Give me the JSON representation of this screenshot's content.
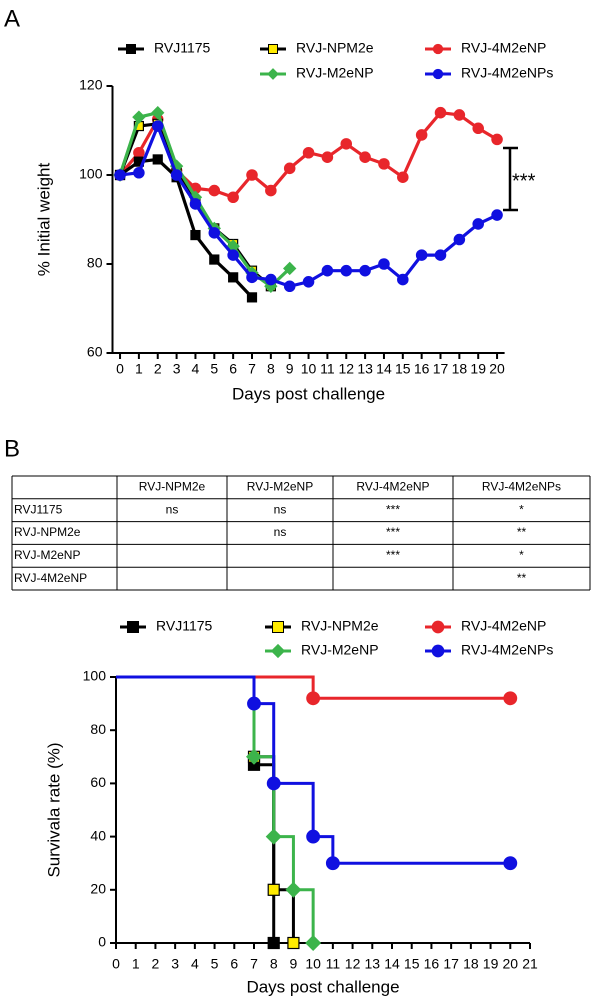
{
  "panels": [
    "A",
    "B"
  ],
  "chart_data": [
    {
      "type": "line",
      "xlabel": "Days post challenge",
      "ylabel": "% Initial weight",
      "xlim": [
        -0.4,
        20.4
      ],
      "ylim": [
        60,
        120
      ],
      "xticks": [
        0,
        1,
        2,
        3,
        4,
        5,
        6,
        7,
        8,
        9,
        10,
        11,
        12,
        13,
        14,
        15,
        16,
        17,
        18,
        19,
        20
      ],
      "yticks": [
        60,
        80,
        100,
        120
      ],
      "annotation": "***",
      "series": [
        {
          "name": "RVJ1175",
          "color": "#000000",
          "marker": "square",
          "x": [
            0,
            1,
            2,
            3,
            4,
            5,
            6,
            7
          ],
          "values": [
            100,
            103,
            103.5,
            99.5,
            86.5,
            81,
            77,
            72.5
          ]
        },
        {
          "name": "RVJ-NPM2e",
          "color": "#ffeb00",
          "edgecolor": "#000000",
          "marker": "square",
          "x": [
            0,
            1,
            2,
            3,
            4,
            5,
            6,
            7,
            8
          ],
          "values": [
            100,
            111,
            111.5,
            101,
            94,
            88,
            84.5,
            78.5,
            75
          ]
        },
        {
          "name": "RVJ-M2eNP",
          "color": "#3cb44b",
          "marker": "diamond",
          "x": [
            0,
            1,
            2,
            3,
            4,
            5,
            6,
            7,
            8,
            9
          ],
          "values": [
            100,
            113,
            114,
            102,
            95,
            88,
            84,
            78,
            75,
            79
          ]
        },
        {
          "name": "RVJ-4M2eNP",
          "color": "#e8262b",
          "marker": "circle",
          "x": [
            0,
            1,
            2,
            3,
            4,
            5,
            6,
            7,
            8,
            9,
            10,
            11,
            12,
            13,
            14,
            15,
            16,
            17,
            18,
            19,
            20
          ],
          "values": [
            100,
            105,
            112.5,
            101,
            97,
            96.5,
            95,
            100,
            96.5,
            101.5,
            105,
            104,
            107,
            104,
            102.5,
            99.5,
            109,
            114,
            113.5,
            110.5,
            108
          ]
        },
        {
          "name": "RVJ-4M2eNPs",
          "color": "#1010e0",
          "marker": "circle",
          "x": [
            0,
            1,
            2,
            3,
            4,
            5,
            6,
            7,
            8,
            9,
            10,
            11,
            12,
            13,
            14,
            15,
            16,
            17,
            18,
            19,
            20
          ],
          "values": [
            100,
            100.5,
            111,
            100,
            93.5,
            87,
            82,
            77,
            76.5,
            75,
            76,
            78.5,
            78.5,
            78.5,
            80,
            76.5,
            82,
            82,
            85.5,
            89,
            91
          ]
        }
      ]
    },
    {
      "type": "step",
      "xlabel": "Days post challenge",
      "ylabel": "Survivala rate (%)",
      "xlim": [
        0,
        21
      ],
      "ylim": [
        0,
        100
      ],
      "xticks": [
        0,
        1,
        2,
        3,
        4,
        5,
        6,
        7,
        8,
        9,
        10,
        11,
        12,
        13,
        14,
        15,
        16,
        17,
        18,
        19,
        20,
        21
      ],
      "yticks": [
        0,
        20,
        40,
        60,
        80,
        100
      ],
      "series": [
        {
          "name": "RVJ1175",
          "color": "#000000",
          "marker": "square",
          "x": [
            0,
            7,
            8
          ],
          "values": [
            100,
            67,
            0
          ]
        },
        {
          "name": "RVJ-NPM2e",
          "color": "#ffeb00",
          "edgecolor": "#000000",
          "marker": "square",
          "x": [
            0,
            7,
            8,
            9
          ],
          "values": [
            100,
            70,
            20,
            0
          ]
        },
        {
          "name": "RVJ-M2eNP",
          "color": "#3cb44b",
          "marker": "diamond",
          "x": [
            0,
            7,
            8,
            9,
            10
          ],
          "values": [
            100,
            70,
            40,
            20,
            0
          ]
        },
        {
          "name": "RVJ-4M2eNP",
          "color": "#e8262b",
          "marker": "circle",
          "x": [
            0,
            10,
            20
          ],
          "values": [
            100,
            92,
            92
          ]
        },
        {
          "name": "RVJ-4M2eNPs",
          "color": "#1010e0",
          "marker": "circle",
          "x": [
            0,
            7,
            8,
            10,
            11,
            20
          ],
          "values": [
            100,
            90,
            60,
            40,
            30,
            30
          ]
        }
      ]
    }
  ],
  "table": {
    "columns": [
      "RVJ-NPM2e",
      "RVJ-M2eNP",
      "RVJ-4M2eNP",
      "RVJ-4M2eNPs"
    ],
    "rows": [
      {
        "label": "RVJ1175",
        "cells": [
          "ns",
          "ns",
          "***",
          "*"
        ]
      },
      {
        "label": "RVJ-NPM2e",
        "cells": [
          null,
          "ns",
          "***",
          "**"
        ]
      },
      {
        "label": "RVJ-M2eNP",
        "cells": [
          null,
          null,
          "***",
          "*"
        ]
      },
      {
        "label": "RVJ-4M2eNP",
        "cells": [
          null,
          null,
          null,
          "**"
        ]
      }
    ]
  }
}
